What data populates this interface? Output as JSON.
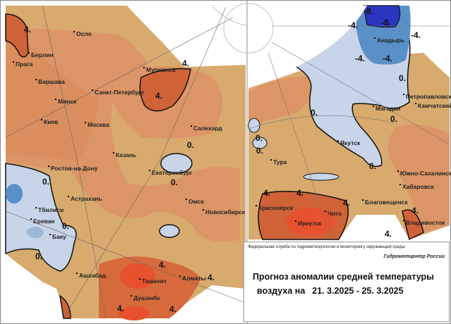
{
  "colors": {
    "base": "#d8aa6e",
    "warm1": "#dc9566",
    "warm2": "#d27a48",
    "warm3": "#d06238",
    "hot": "#e8512e",
    "cool1": "#c8d4e8",
    "cool2": "#9cb8d8",
    "cool3": "#5a90c8",
    "cold": "#2a36c0"
  },
  "left_cities": [
    "Осло",
    "Берлин",
    "Прага",
    "Варшава",
    "Минск",
    "Киев",
    "Москва",
    "Санкт-Петербург",
    "Мурманск",
    "Салехард",
    "Казань",
    "Екатеринбург",
    "Ростов-на-Дону",
    "Астрахань",
    "Тбилиси",
    "Ереван",
    "Баку",
    "Омск",
    "Новосибирск",
    "Ашхабад",
    "Ташкент",
    "Алматы",
    "Душанбе"
  ],
  "right_cities": [
    "Анадырь",
    "Петропавловск",
    "Камчатский",
    "Магадан",
    "Якутск",
    "Тура",
    "Южно-Сахалинск",
    "Хабаровск",
    "Благовещенск",
    "Красноярск",
    "Чита",
    "Иркутск",
    "Владивосток"
  ],
  "contour_labels": {
    "plus4": "4.",
    "zero": "0.",
    "minus4": "-4.",
    "minus8": "-8."
  },
  "info": {
    "agency": "Федеральная служба по гидрометеорологии и мониторингу окружающей среды",
    "center": "Гидрометцентр России",
    "title_line1": "Прогноз аномалии средней температуры",
    "title_line2_prefix": "воздуха на",
    "period": "21. 3.2025 - 25. 3.2025"
  }
}
